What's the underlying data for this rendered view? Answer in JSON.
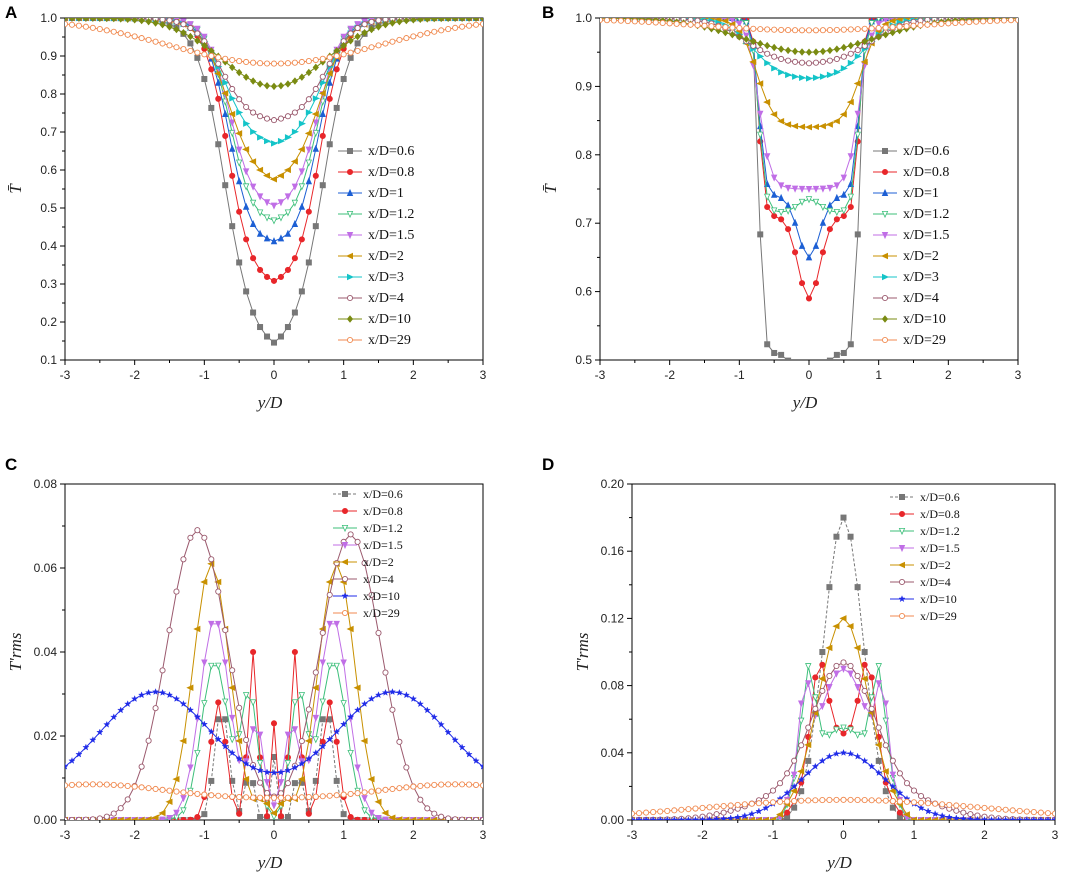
{
  "chart_data": [
    {
      "panel": "A",
      "type": "line",
      "xlabel": "y/D",
      "ylabel": "T̄",
      "xlim": [
        -3,
        3
      ],
      "ylim": [
        0.1,
        1.0
      ],
      "xticks": [
        "-3",
        "-2",
        "-1",
        "0",
        "1",
        "2",
        "3"
      ],
      "yticks": [
        "0.1",
        "0.2",
        "0.3",
        "0.4",
        "0.5",
        "0.6",
        "0.7",
        "0.8",
        "0.9",
        "1.0"
      ],
      "legend_position": "center-right",
      "series": [
        {
          "name": "x/D=0.6",
          "color": "#777777",
          "marker": "square",
          "dash": false,
          "profile": "rise",
          "depth": 0.88,
          "width": 0.7,
          "sharp": 5,
          "bump": 0
        },
        {
          "name": "x/D=0.8",
          "color": "#e8262a",
          "marker": "circle",
          "dash": false,
          "profile": "rise",
          "depth": 0.705,
          "width": 0.66,
          "sharp": 6,
          "bump": 0
        },
        {
          "name": "x/D=1",
          "color": "#1c5fd4",
          "marker": "triangle-up",
          "dash": false,
          "profile": "rise",
          "depth": 0.615,
          "width": 0.64,
          "sharp": 6,
          "bump": 0.015
        },
        {
          "name": "x/D=1.2",
          "color": "#3cbf7a",
          "marker": "triangle-down-open",
          "dash": false,
          "profile": "rise",
          "depth": 0.555,
          "width": 0.63,
          "sharp": 6,
          "bump": 0.01
        },
        {
          "name": "x/D=1.5",
          "color": "#c06ee6",
          "marker": "triangle-down",
          "dash": false,
          "profile": "rise",
          "depth": 0.505,
          "width": 0.63,
          "sharp": 6,
          "bump": 0
        },
        {
          "name": "x/D=2",
          "color": "#c89000",
          "marker": "triangle-left",
          "dash": false,
          "profile": "rise",
          "depth": 0.44,
          "width": 0.66,
          "sharp": 5,
          "bump": 0
        },
        {
          "name": "x/D=3",
          "color": "#14c4c8",
          "marker": "triangle-right",
          "dash": false,
          "profile": "rise",
          "depth": 0.34,
          "width": 0.7,
          "sharp": 5,
          "bump": 0
        },
        {
          "name": "x/D=4",
          "color": "#9b5a6e",
          "marker": "circle-open",
          "dash": false,
          "profile": "rise",
          "depth": 0.275,
          "width": 0.75,
          "sharp": 5,
          "bump": 0
        },
        {
          "name": "x/D=10",
          "color": "#7a8b12",
          "marker": "diamond",
          "dash": false,
          "profile": "rise",
          "depth": 0.18,
          "width": 1.05,
          "sharp": 3,
          "bump": 0
        },
        {
          "name": "x/D=29",
          "color": "#f08a50",
          "marker": "circle-open",
          "dash": false,
          "profile": "rise",
          "depth": 0.12,
          "width": 2.1,
          "sharp": 2,
          "bump": 0
        }
      ]
    },
    {
      "panel": "B",
      "type": "line",
      "xlabel": "y/D",
      "ylabel": "T̄",
      "xlim": [
        -3,
        3
      ],
      "ylim": [
        0.5,
        1.0
      ],
      "xticks": [
        "-3",
        "-2",
        "-1",
        "0",
        "1",
        "2",
        "3"
      ],
      "yticks": [
        "0.5",
        "0.6",
        "0.7",
        "0.8",
        "0.9",
        "1.0"
      ],
      "legend_position": "center-right",
      "series": [
        {
          "name": "x/D=0.6",
          "color": "#777777",
          "marker": "square",
          "dash": false,
          "profile": "box",
          "depth": 0.49,
          "width": 0.72,
          "sharp": 30,
          "bump": -0.07
        },
        {
          "name": "x/D=0.8",
          "color": "#e8262a",
          "marker": "circle",
          "dash": false,
          "profile": "box",
          "depth": 0.29,
          "width": 0.72,
          "sharp": 25,
          "bump": -0.12
        },
        {
          "name": "x/D=1",
          "color": "#1c5fd4",
          "marker": "triangle-up",
          "dash": false,
          "profile": "box",
          "depth": 0.26,
          "width": 0.72,
          "sharp": 22,
          "bump": -0.09
        },
        {
          "name": "x/D=1.2",
          "color": "#3cbf7a",
          "marker": "triangle-down-open",
          "dash": false,
          "profile": "box",
          "depth": 0.285,
          "width": 0.72,
          "sharp": 20,
          "bump": 0.02
        },
        {
          "name": "x/D=1.5",
          "color": "#c06ee6",
          "marker": "triangle-down",
          "dash": false,
          "profile": "box",
          "depth": 0.25,
          "width": 0.72,
          "sharp": 12,
          "bump": 0
        },
        {
          "name": "x/D=2",
          "color": "#c89000",
          "marker": "triangle-left",
          "dash": false,
          "profile": "box",
          "depth": 0.16,
          "width": 0.75,
          "sharp": 8,
          "bump": 0
        },
        {
          "name": "x/D=3",
          "color": "#14c4c8",
          "marker": "triangle-right",
          "dash": false,
          "profile": "rise",
          "depth": 0.09,
          "width": 0.8,
          "sharp": 5,
          "bump": 0
        },
        {
          "name": "x/D=4",
          "color": "#9b5a6e",
          "marker": "circle-open",
          "dash": false,
          "profile": "rise",
          "depth": 0.068,
          "width": 0.9,
          "sharp": 4,
          "bump": 0
        },
        {
          "name": "x/D=10",
          "color": "#7a8b12",
          "marker": "diamond",
          "dash": false,
          "profile": "rise",
          "depth": 0.05,
          "width": 1.3,
          "sharp": 3,
          "bump": 0
        },
        {
          "name": "x/D=29",
          "color": "#f08a50",
          "marker": "circle-open",
          "dash": false,
          "profile": "rise",
          "depth": 0.018,
          "width": 2.2,
          "sharp": 2,
          "bump": 0
        }
      ]
    },
    {
      "panel": "C",
      "type": "line",
      "xlabel": "y/D",
      "ylabel": "T′rms",
      "xlim": [
        -3,
        3
      ],
      "ylim": [
        0.0,
        0.08
      ],
      "xticks": [
        "-3",
        "-2",
        "-1",
        "0",
        "1",
        "2",
        "3"
      ],
      "yticks": [
        "0.00",
        "0.02",
        "0.04",
        "0.06",
        "0.08"
      ],
      "legend_position": "top-right",
      "series": [
        {
          "name": "x/D=0.6",
          "color": "#777777",
          "marker": "square",
          "dash": true,
          "peaks": [
            [
              -0.75,
              0.027,
              0.13
            ],
            [
              0.75,
              0.027,
              0.13
            ],
            [
              -0.35,
              0.012,
              0.08
            ],
            [
              0.35,
              0.012,
              0.08
            ],
            [
              0,
              0.015,
              0.05
            ]
          ]
        },
        {
          "name": "x/D=0.8",
          "color": "#e8262a",
          "marker": "circle",
          "dash": false,
          "peaks": [
            [
              -0.8,
              0.028,
              0.14
            ],
            [
              0.8,
              0.028,
              0.14
            ],
            [
              -0.3,
              0.04,
              0.09
            ],
            [
              0.3,
              0.04,
              0.09
            ],
            [
              0,
              0.023,
              0.04
            ]
          ]
        },
        {
          "name": "x/D=1.2",
          "color": "#3cbf7a",
          "marker": "triangle-down-open",
          "dash": false,
          "peaks": [
            [
              -0.85,
              0.038,
              0.24
            ],
            [
              0.85,
              0.038,
              0.24
            ],
            [
              -0.35,
              0.03,
              0.15
            ],
            [
              0.35,
              0.03,
              0.15
            ]
          ]
        },
        {
          "name": "x/D=1.5",
          "color": "#c06ee6",
          "marker": "triangle-down",
          "dash": false,
          "peaks": [
            [
              -0.85,
              0.048,
              0.27
            ],
            [
              0.85,
              0.048,
              0.27
            ],
            [
              -0.25,
              0.022,
              0.14
            ],
            [
              0.25,
              0.022,
              0.14
            ]
          ]
        },
        {
          "name": "x/D=2",
          "color": "#c89000",
          "marker": "triangle-left",
          "dash": false,
          "peaks": [
            [
              -0.9,
              0.061,
              0.33
            ],
            [
              0.9,
              0.061,
              0.33
            ],
            [
              -0.15,
              0.004,
              0.1
            ],
            [
              0.15,
              0.004,
              0.1
            ]
          ]
        },
        {
          "name": "x/D=4",
          "color": "#9b5a6e",
          "marker": "circle-open",
          "dash": false,
          "peaks": [
            [
              -1.1,
              0.069,
              0.55
            ],
            [
              1.1,
              0.068,
              0.55
            ]
          ]
        },
        {
          "name": "x/D=10",
          "color": "#1f2be8",
          "marker": "star",
          "dash": false,
          "peaks": [
            [
              -1.7,
              0.024,
              1.0
            ],
            [
              1.7,
              0.024,
              1.0
            ]
          ],
          "base": 0.0065
        },
        {
          "name": "x/D=29",
          "color": "#f08a50",
          "marker": "circle-open",
          "dash": false,
          "peaks": [
            [
              -2.6,
              0.0035,
              1.3
            ],
            [
              2.6,
              0.0035,
              1.3
            ]
          ],
          "base": 0.005
        }
      ]
    },
    {
      "panel": "D",
      "type": "line",
      "xlabel": "y/D",
      "ylabel": "T′rms",
      "xlim": [
        -3,
        3
      ],
      "ylim": [
        0.0,
        0.2
      ],
      "xticks": [
        "-3",
        "-2",
        "-1",
        "0",
        "1",
        "2",
        "3"
      ],
      "yticks": [
        "0.00",
        "0.04",
        "0.08",
        "0.12",
        "0.16",
        "0.20"
      ],
      "legend_position": "top-right",
      "series": [
        {
          "name": "x/D=0.6",
          "color": "#777777",
          "marker": "square",
          "dash": true,
          "peaks": [
            [
              0,
              0.18,
              0.35
            ]
          ],
          "clip": 0.75
        },
        {
          "name": "x/D=0.8",
          "color": "#e8262a",
          "marker": "circle",
          "dash": false,
          "peaks": [
            [
              -0.35,
              0.06,
              0.15
            ],
            [
              0.35,
              0.06,
              0.15
            ],
            [
              0,
              0.05,
              0.5
            ]
          ],
          "clip": 0.75
        },
        {
          "name": "x/D=1.2",
          "color": "#3cbf7a",
          "marker": "triangle-down-open",
          "dash": false,
          "peaks": [
            [
              -0.5,
              0.06,
              0.12
            ],
            [
              0.5,
              0.06,
              0.12
            ],
            [
              0,
              0.055,
              0.6
            ]
          ],
          "clip": 0.75
        },
        {
          "name": "x/D=1.5",
          "color": "#c06ee6",
          "marker": "triangle-down",
          "dash": false,
          "peaks": [
            [
              -0.55,
              0.05,
              0.1
            ],
            [
              0.55,
              0.05,
              0.1
            ],
            [
              0,
              0.09,
              0.5
            ]
          ],
          "clip": 0.8
        },
        {
          "name": "x/D=2",
          "color": "#c89000",
          "marker": "triangle-left",
          "dash": false,
          "peaks": [
            [
              0,
              0.12,
              0.45
            ]
          ],
          "clip": 0.85
        },
        {
          "name": "x/D=4",
          "color": "#9b5a6e",
          "marker": "circle-open",
          "dash": false,
          "peaks": [
            [
              0,
              0.083,
              0.55
            ],
            [
              -0.8,
              0.012,
              0.8
            ],
            [
              0.8,
              0.012,
              0.8
            ]
          ]
        },
        {
          "name": "x/D=10",
          "color": "#1f2be8",
          "marker": "star",
          "dash": false,
          "peaks": [
            [
              0,
              0.04,
              0.75
            ]
          ],
          "base": 0.0
        },
        {
          "name": "x/D=29",
          "color": "#f08a50",
          "marker": "circle-open",
          "dash": false,
          "peaks": [
            [
              0,
              0.012,
              2.5
            ]
          ],
          "base": 0.0
        }
      ]
    }
  ]
}
